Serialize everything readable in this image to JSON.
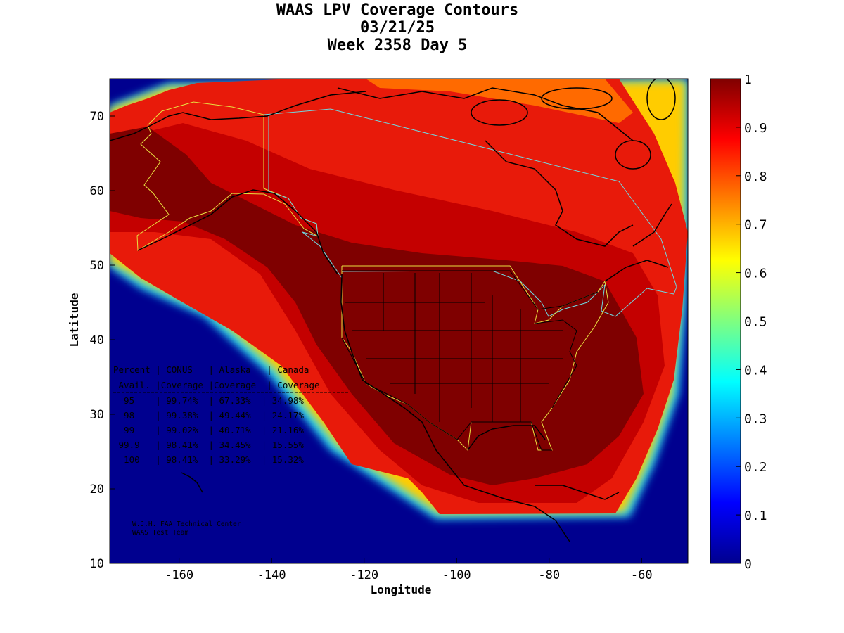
{
  "title": {
    "line1": "WAAS LPV Coverage Contours",
    "line2": "03/21/25",
    "line3": "Week 2358 Day 5"
  },
  "axes": {
    "xlabel": "Longitude",
    "ylabel": "Latitude",
    "xlim": [
      -175,
      -50
    ],
    "ylim": [
      10,
      75
    ],
    "xticks": [
      "-160",
      "-140",
      "-120",
      "-100",
      "-80",
      "-60"
    ],
    "yticks": [
      "10",
      "20",
      "30",
      "40",
      "50",
      "60",
      "70"
    ]
  },
  "colorbar": {
    "range": [
      0,
      1
    ],
    "ticks": [
      "0",
      "0.1",
      "0.2",
      "0.3",
      "0.4",
      "0.5",
      "0.6",
      "0.7",
      "0.8",
      "0.9",
      "1"
    ]
  },
  "stats_table": {
    "header1": "Percent | CONUS   | Alaska   | Canada",
    "header2": " Avail. |Coverage |Coverage  | Coverage",
    "rows": [
      "  95    | 99.74%  | 67.33%  | 34.98%",
      "  98    | 99.38%  | 49.44%  | 24.17%",
      "  99    | 99.02%  | 40.71%  | 21.16%",
      " 99.9   | 98.41%  | 34.45%  | 15.55%",
      "  100   | 98.41%  | 33.29%  | 15.32%"
    ]
  },
  "credit": {
    "line1": "W.J.H. FAA Technical Center",
    "line2": "WAAS Test Team"
  },
  "colors": {
    "background": "#00008f",
    "outer_red": "#e81a0a",
    "core": "#7f0000"
  }
}
